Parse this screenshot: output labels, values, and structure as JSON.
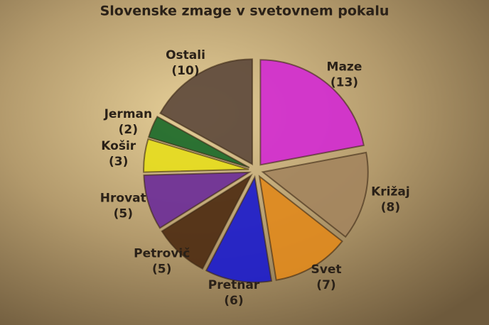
{
  "chart_data": {
    "type": "pie",
    "title": "Slovenske zmage v svetovnem pokalu",
    "categories": [
      "Maze",
      "Križaj",
      "Svet",
      "Pretnar",
      "Petrovič",
      "Hrovat",
      "Košir",
      "Jerman",
      "Ostali"
    ],
    "values": [
      13,
      8,
      7,
      6,
      5,
      5,
      3,
      2,
      10
    ],
    "value_labels": [
      "(13)",
      "(8)",
      "(7)",
      "(6)",
      "(5)",
      "(5)",
      "(3)",
      "(2)",
      "(10)"
    ],
    "colors": [
      "#d22cd0",
      "#a4855e",
      "#e08a1e",
      "#1c1ccc",
      "#4e2c12",
      "#6c2e98",
      "#e6dc1e",
      "#1c6a2a",
      "#5e4a3c"
    ]
  }
}
